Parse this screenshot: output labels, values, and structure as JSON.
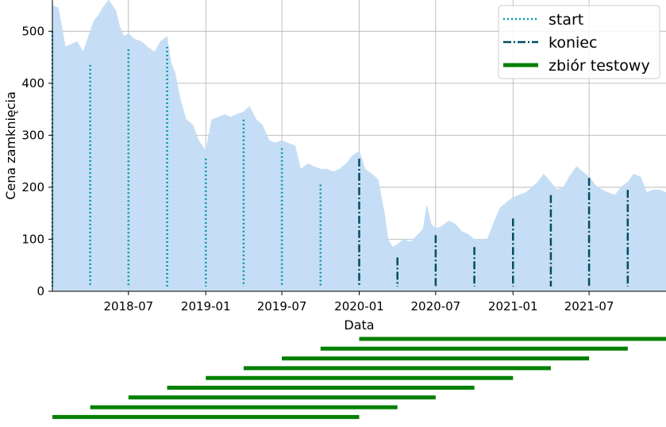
{
  "chart_data": {
    "type": "area",
    "xlabel": "Data",
    "ylabel": "Cena zamknięcia",
    "xlim": [
      "2018-01-01",
      "2021-12-31"
    ],
    "ylim": [
      0,
      560
    ],
    "grid": true,
    "fill_color": "#c2ddf5",
    "x_ticks": [
      "2018-07",
      "2019-01",
      "2019-07",
      "2020-01",
      "2020-07",
      "2021-01",
      "2021-07"
    ],
    "y_ticks": [
      0,
      100,
      200,
      300,
      400,
      500
    ],
    "series": [
      {
        "name": "",
        "x": [
          "2018-01-01",
          "2018-01-15",
          "2018-02-01",
          "2018-02-15",
          "2018-03-01",
          "2018-03-15",
          "2018-04-01",
          "2018-04-10",
          "2018-04-20",
          "2018-05-01",
          "2018-05-15",
          "2018-06-01",
          "2018-06-10",
          "2018-06-20",
          "2018-07-01",
          "2018-07-15",
          "2018-08-01",
          "2018-08-15",
          "2018-09-01",
          "2018-09-15",
          "2018-10-01",
          "2018-10-10",
          "2018-10-20",
          "2018-11-01",
          "2018-11-15",
          "2018-12-01",
          "2018-12-15",
          "2019-01-01",
          "2019-01-15",
          "2019-02-01",
          "2019-02-15",
          "2019-03-01",
          "2019-03-15",
          "2019-04-01",
          "2019-04-15",
          "2019-05-01",
          "2019-05-15",
          "2019-06-01",
          "2019-06-15",
          "2019-07-01",
          "2019-07-15",
          "2019-08-01",
          "2019-08-15",
          "2019-09-01",
          "2019-09-15",
          "2019-10-01",
          "2019-10-15",
          "2019-11-01",
          "2019-11-15",
          "2019-12-01",
          "2019-12-15",
          "2020-01-01",
          "2020-01-15",
          "2020-02-01",
          "2020-02-15",
          "2020-03-01",
          "2020-03-10",
          "2020-03-20",
          "2020-04-01",
          "2020-04-15",
          "2020-05-01",
          "2020-05-15",
          "2020-06-01",
          "2020-06-10",
          "2020-06-20",
          "2020-07-01",
          "2020-07-15",
          "2020-08-01",
          "2020-08-15",
          "2020-09-01",
          "2020-09-15",
          "2020-10-01",
          "2020-10-15",
          "2020-11-01",
          "2020-11-15",
          "2020-12-01",
          "2020-12-15",
          "2021-01-01",
          "2021-01-15",
          "2021-02-01",
          "2021-02-15",
          "2021-03-01",
          "2021-03-15",
          "2021-04-01",
          "2021-04-15",
          "2021-05-01",
          "2021-05-15",
          "2021-06-01",
          "2021-06-15",
          "2021-07-01",
          "2021-07-15",
          "2021-08-01",
          "2021-08-15",
          "2021-09-01",
          "2021-09-15",
          "2021-10-01",
          "2021-10-15",
          "2021-11-01",
          "2021-11-15",
          "2021-12-01",
          "2021-12-15",
          "2021-12-31"
        ],
        "y": [
          550,
          545,
          470,
          475,
          480,
          460,
          500,
          520,
          530,
          545,
          560,
          540,
          510,
          490,
          495,
          485,
          480,
          470,
          460,
          480,
          490,
          440,
          420,
          370,
          330,
          320,
          290,
          270,
          330,
          335,
          340,
          335,
          340,
          345,
          355,
          330,
          320,
          290,
          285,
          290,
          285,
          280,
          235,
          245,
          240,
          235,
          235,
          230,
          235,
          245,
          260,
          270,
          235,
          225,
          215,
          150,
          100,
          85,
          90,
          100,
          95,
          105,
          120,
          165,
          130,
          120,
          125,
          135,
          130,
          115,
          110,
          100,
          100,
          100,
          130,
          160,
          170,
          180,
          185,
          190,
          200,
          210,
          225,
          210,
          195,
          200,
          220,
          240,
          230,
          220,
          205,
          195,
          190,
          185,
          200,
          210,
          225,
          220,
          190,
          195,
          195,
          190
        ]
      }
    ],
    "vlines_start": {
      "label": "start",
      "color": "#0099aa",
      "x": [
        "2018-01-01",
        "2018-04-01",
        "2018-07-01",
        "2018-10-01",
        "2019-01-01",
        "2019-04-01",
        "2019-07-01",
        "2019-10-01"
      ],
      "y": [
        500,
        435,
        465,
        470,
        255,
        330,
        275,
        205
      ]
    },
    "vlines_end": {
      "label": "koniec",
      "color": "#004c5e",
      "x": [
        "2020-01-01",
        "2020-04-01",
        "2020-07-01",
        "2020-10-01",
        "2021-01-01",
        "2021-04-01",
        "2021-07-01",
        "2021-10-01"
      ],
      "y": [
        255,
        65,
        108,
        85,
        140,
        185,
        218,
        195
      ]
    },
    "test_sets": {
      "label": "zbiór testowy",
      "color": "#008000",
      "ranges": [
        {
          "start": "2020-01-01",
          "end": "2021-12-31"
        },
        {
          "start": "2019-10-01",
          "end": "2021-10-01"
        },
        {
          "start": "2019-07-01",
          "end": "2021-07-01"
        },
        {
          "start": "2019-04-01",
          "end": "2021-04-01"
        },
        {
          "start": "2019-01-01",
          "end": "2021-01-01"
        },
        {
          "start": "2018-10-01",
          "end": "2020-10-01"
        },
        {
          "start": "2018-07-01",
          "end": "2020-07-01"
        },
        {
          "start": "2018-04-01",
          "end": "2020-04-01"
        },
        {
          "start": "2018-01-01",
          "end": "2020-01-01"
        }
      ]
    },
    "legend_position": "top-right"
  }
}
